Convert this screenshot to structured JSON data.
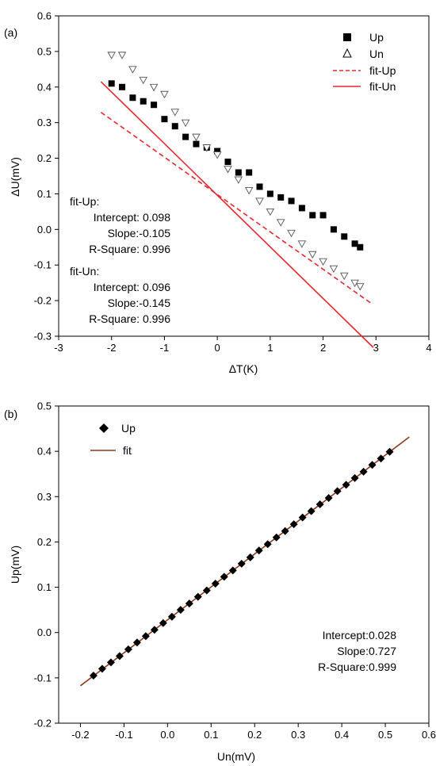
{
  "chart_data": [
    {
      "type": "scatter",
      "panel_label": "(a)",
      "xlabel": "ΔT(K)",
      "ylabel": "ΔU(mV)",
      "xlim": [
        -3,
        4
      ],
      "ylim": [
        -0.3,
        0.6
      ],
      "xticks": [
        "-3",
        "-2",
        "-1",
        "0",
        "1",
        "2",
        "3",
        "4"
      ],
      "yticks": [
        "-0.3",
        "-0.2",
        "-0.1",
        "0.0",
        "0.1",
        "0.2",
        "0.3",
        "0.4",
        "0.5",
        "0.6"
      ],
      "legend_position": "top-right",
      "legend": [
        {
          "label": "Up",
          "symbol": "filled-square"
        },
        {
          "label": "Un",
          "symbol": "open-triangle"
        },
        {
          "label": "fit-Up",
          "symbol": "dashed-line"
        },
        {
          "label": "fit-Un",
          "symbol": "solid-line"
        }
      ],
      "series": [
        {
          "name": "Up",
          "marker": "filled-square",
          "color": "#000000",
          "x": [
            -2.0,
            -1.8,
            -1.6,
            -1.4,
            -1.2,
            -1.0,
            -0.8,
            -0.6,
            -0.4,
            -0.2,
            0.0,
            0.2,
            0.4,
            0.6,
            0.8,
            1.0,
            1.2,
            1.4,
            1.6,
            1.8,
            2.0,
            2.2,
            2.4,
            2.6,
            2.7
          ],
          "y": [
            0.41,
            0.4,
            0.37,
            0.36,
            0.35,
            0.31,
            0.29,
            0.26,
            0.24,
            0.23,
            0.22,
            0.19,
            0.16,
            0.16,
            0.12,
            0.1,
            0.09,
            0.08,
            0.06,
            0.04,
            0.04,
            0.0,
            -0.02,
            -0.04,
            -0.05
          ]
        },
        {
          "name": "Un",
          "marker": "open-triangle",
          "color": "#000000",
          "x": [
            -2.0,
            -1.8,
            -1.6,
            -1.4,
            -1.2,
            -1.0,
            -0.8,
            -0.6,
            -0.4,
            -0.2,
            0.0,
            0.2,
            0.4,
            0.6,
            0.8,
            1.0,
            1.2,
            1.4,
            1.6,
            1.8,
            2.0,
            2.2,
            2.4,
            2.6,
            2.7
          ],
          "y": [
            0.49,
            0.49,
            0.45,
            0.42,
            0.4,
            0.38,
            0.33,
            0.3,
            0.26,
            0.23,
            0.21,
            0.17,
            0.14,
            0.11,
            0.08,
            0.05,
            0.02,
            -0.01,
            -0.04,
            -0.07,
            -0.09,
            -0.11,
            -0.13,
            -0.15,
            -0.16
          ]
        }
      ],
      "fits": [
        {
          "name": "fit-Up",
          "intercept": 0.098,
          "slope": -0.105,
          "x_range": [
            -2.2,
            2.9
          ],
          "style": "dashed",
          "color": "#e8262b"
        },
        {
          "name": "fit-Un",
          "intercept": 0.096,
          "slope": -0.145,
          "x_range": [
            -2.2,
            2.95
          ],
          "style": "solid",
          "color": "#e8262b"
        }
      ],
      "annotations": [
        {
          "header": "fit-Up:",
          "intercept": "Intercept: 0.098",
          "slope": "Slope:-0.105",
          "r2": "R-Square: 0.996"
        },
        {
          "header": "fit-Un:",
          "intercept": "Intercept: 0.096",
          "slope": "Slope:-0.145",
          "r2": "R-Square: 0.996"
        }
      ]
    },
    {
      "type": "scatter",
      "panel_label": "(b)",
      "xlabel": "Un(mV)",
      "ylabel": "Up(mV)",
      "xlim": [
        -0.25,
        0.6
      ],
      "ylim": [
        -0.2,
        0.5
      ],
      "xticks": [
        "-0.2",
        "-0.1",
        "0.0",
        "0.1",
        "0.2",
        "0.3",
        "0.4",
        "0.5",
        "0.6"
      ],
      "yticks": [
        "-0.2",
        "-0.1",
        "0.0",
        "0.1",
        "0.2",
        "0.3",
        "0.4",
        "0.5"
      ],
      "legend_position": "top-left",
      "legend": [
        {
          "label": "Up",
          "symbol": "filled-diamond"
        },
        {
          "label": "fit",
          "symbol": "solid-line"
        }
      ],
      "series": [
        {
          "name": "Up",
          "marker": "filled-diamond",
          "color": "#000000",
          "x": [
            -0.17,
            -0.15,
            -0.13,
            -0.11,
            -0.09,
            -0.07,
            -0.05,
            -0.03,
            -0.01,
            0.01,
            0.03,
            0.05,
            0.07,
            0.09,
            0.11,
            0.13,
            0.15,
            0.17,
            0.19,
            0.21,
            0.23,
            0.25,
            0.27,
            0.29,
            0.31,
            0.33,
            0.35,
            0.37,
            0.39,
            0.41,
            0.43,
            0.45,
            0.47,
            0.49,
            0.51
          ],
          "y": [
            -0.095,
            -0.08,
            -0.066,
            -0.052,
            -0.037,
            -0.022,
            -0.008,
            0.006,
            0.021,
            0.035,
            0.05,
            0.064,
            0.079,
            0.093,
            0.108,
            0.123,
            0.137,
            0.152,
            0.166,
            0.181,
            0.195,
            0.21,
            0.224,
            0.239,
            0.254,
            0.268,
            0.283,
            0.297,
            0.312,
            0.326,
            0.341,
            0.355,
            0.37,
            0.384,
            0.399
          ]
        }
      ],
      "fits": [
        {
          "name": "fit",
          "intercept": 0.028,
          "slope": 0.727,
          "x_range": [
            -0.2,
            0.555
          ],
          "style": "solid",
          "color": "#8b3a1a"
        }
      ],
      "annotations": [
        {
          "intercept": "Intercept:0.028",
          "slope": "Slope:0.727",
          "r2": "R-Square:0.999"
        }
      ]
    }
  ]
}
